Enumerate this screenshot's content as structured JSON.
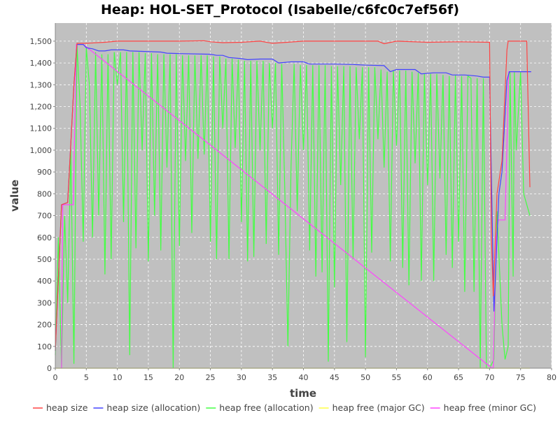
{
  "chart_data": {
    "type": "line",
    "title": "Heap: HOL-SET_Protocol (Isabelle/c6fc0c7ef56f)",
    "xlabel": "time",
    "ylabel": "value",
    "xlim": [
      0,
      80
    ],
    "ylim": [
      0,
      1583
    ],
    "x_ticks": [
      0,
      5,
      10,
      15,
      20,
      25,
      30,
      35,
      40,
      45,
      50,
      55,
      60,
      65,
      70,
      75,
      80
    ],
    "y_ticks": [
      0,
      100,
      200,
      300,
      400,
      500,
      600,
      700,
      800,
      900,
      1000,
      1100,
      1200,
      1300,
      1400,
      1500
    ],
    "y_tick_labels": [
      "0",
      "100",
      "200",
      "300",
      "400",
      "500",
      "600",
      "700",
      "800",
      "900",
      "1,000",
      "1,100",
      "1,200",
      "1,300",
      "1,400",
      "1,500"
    ],
    "grid": true,
    "legend_position": "bottom",
    "plot_background": "#c0c0c0",
    "series": [
      {
        "name": "heap size",
        "color": "#ff4444",
        "points": [
          [
            0,
            80
          ],
          [
            1,
            750
          ],
          [
            2,
            760
          ],
          [
            3,
            1300
          ],
          [
            3.5,
            1490
          ],
          [
            5,
            1490
          ],
          [
            8,
            1495
          ],
          [
            10,
            1500
          ],
          [
            20,
            1500
          ],
          [
            24,
            1502
          ],
          [
            25,
            1497
          ],
          [
            27,
            1493
          ],
          [
            30,
            1495
          ],
          [
            33,
            1500
          ],
          [
            35,
            1490
          ],
          [
            40,
            1500
          ],
          [
            50,
            1500
          ],
          [
            52,
            1500
          ],
          [
            53,
            1488
          ],
          [
            55,
            1500
          ],
          [
            60,
            1495
          ],
          [
            65,
            1497
          ],
          [
            70,
            1495
          ],
          [
            70.3,
            600
          ],
          [
            70.6,
            330
          ],
          [
            71.2,
            800
          ],
          [
            72,
            950
          ],
          [
            72.8,
            1460
          ],
          [
            73,
            1500
          ],
          [
            75,
            1500
          ],
          [
            76,
            1500
          ],
          [
            76.5,
            830
          ]
        ]
      },
      {
        "name": "heap size (allocation)",
        "color": "#4444ff",
        "points": [
          [
            0,
            80
          ],
          [
            1,
            750
          ],
          [
            2,
            760
          ],
          [
            3,
            1300
          ],
          [
            3.5,
            1485
          ],
          [
            4.5,
            1485
          ],
          [
            5,
            1470
          ],
          [
            6,
            1465
          ],
          [
            7,
            1455
          ],
          [
            8,
            1455
          ],
          [
            9,
            1460
          ],
          [
            11,
            1460
          ],
          [
            12,
            1455
          ],
          [
            17,
            1450
          ],
          [
            18,
            1445
          ],
          [
            20,
            1443
          ],
          [
            25,
            1440
          ],
          [
            26,
            1435
          ],
          [
            27,
            1435
          ],
          [
            28,
            1425
          ],
          [
            30,
            1420
          ],
          [
            31,
            1415
          ],
          [
            33,
            1418
          ],
          [
            35,
            1418
          ],
          [
            36,
            1400
          ],
          [
            38,
            1405
          ],
          [
            40,
            1405
          ],
          [
            41,
            1395
          ],
          [
            45,
            1395
          ],
          [
            48,
            1393
          ],
          [
            50,
            1390
          ],
          [
            53,
            1388
          ],
          [
            54,
            1360
          ],
          [
            55,
            1370
          ],
          [
            58,
            1370
          ],
          [
            59,
            1350
          ],
          [
            61,
            1355
          ],
          [
            63,
            1355
          ],
          [
            64,
            1345
          ],
          [
            66,
            1345
          ],
          [
            68,
            1340
          ],
          [
            69,
            1335
          ],
          [
            70,
            1335
          ],
          [
            70.7,
            260
          ],
          [
            71.5,
            800
          ],
          [
            72,
            900
          ],
          [
            72.8,
            1320
          ],
          [
            73.2,
            1360
          ],
          [
            75,
            1360
          ],
          [
            76.7,
            1360
          ]
        ]
      },
      {
        "name": "heap free (allocation)",
        "color": "#44ff44",
        "points": [
          [
            0,
            60
          ],
          [
            0.5,
            600
          ],
          [
            1,
            0
          ],
          [
            1.5,
            700
          ],
          [
            2,
            300
          ],
          [
            2.5,
            1000
          ],
          [
            3,
            20
          ],
          [
            3.5,
            1480
          ],
          [
            4,
            1200
          ],
          [
            4.5,
            580
          ],
          [
            5,
            1470
          ],
          [
            5.5,
            1300
          ],
          [
            6,
            600
          ],
          [
            6.5,
            1450
          ],
          [
            7,
            700
          ],
          [
            7.5,
            1440
          ],
          [
            8,
            430
          ],
          [
            8.5,
            1440
          ],
          [
            9,
            500
          ],
          [
            9.5,
            1450
          ],
          [
            10,
            1300
          ],
          [
            10.5,
            1450
          ],
          [
            11,
            670
          ],
          [
            11.5,
            1450
          ],
          [
            12,
            60
          ],
          [
            12.5,
            1450
          ],
          [
            13,
            550
          ],
          [
            13.5,
            1450
          ],
          [
            14,
            1000
          ],
          [
            14.5,
            1445
          ],
          [
            15,
            490
          ],
          [
            15.5,
            1445
          ],
          [
            16,
            700
          ],
          [
            16.5,
            1440
          ],
          [
            17,
            540
          ],
          [
            17.5,
            1440
          ],
          [
            18,
            920
          ],
          [
            18.5,
            1440
          ],
          [
            19,
            0
          ],
          [
            19.5,
            1440
          ],
          [
            20,
            560
          ],
          [
            20.5,
            1435
          ],
          [
            21,
            950
          ],
          [
            21.5,
            1435
          ],
          [
            22,
            620
          ],
          [
            22.5,
            1435
          ],
          [
            23,
            960
          ],
          [
            23.5,
            1435
          ],
          [
            24,
            980
          ],
          [
            24.5,
            1435
          ],
          [
            25,
            580
          ],
          [
            25.5,
            1430
          ],
          [
            26,
            500
          ],
          [
            26.5,
            1430
          ],
          [
            27,
            1100
          ],
          [
            27.5,
            1420
          ],
          [
            28,
            500
          ],
          [
            28.5,
            1420
          ],
          [
            29,
            1010
          ],
          [
            29.5,
            1415
          ],
          [
            30,
            670
          ],
          [
            30.5,
            1410
          ],
          [
            31,
            490
          ],
          [
            31.5,
            1410
          ],
          [
            32,
            510
          ],
          [
            32.5,
            1410
          ],
          [
            33,
            1000
          ],
          [
            33.5,
            1410
          ],
          [
            34,
            570
          ],
          [
            34.5,
            1400
          ],
          [
            35,
            1100
          ],
          [
            35.5,
            1400
          ],
          [
            36,
            520
          ],
          [
            36.5,
            1395
          ],
          [
            37,
            810
          ],
          [
            37.5,
            100
          ],
          [
            38,
            930
          ],
          [
            38.5,
            1395
          ],
          [
            39,
            720
          ],
          [
            39.5,
            1390
          ],
          [
            40,
            1000
          ],
          [
            40.5,
            1390
          ],
          [
            41,
            540
          ],
          [
            41.5,
            1390
          ],
          [
            42,
            420
          ],
          [
            42.5,
            1390
          ],
          [
            43,
            440
          ],
          [
            43.5,
            1390
          ],
          [
            44,
            30
          ],
          [
            44.5,
            1385
          ],
          [
            45,
            370
          ],
          [
            45.5,
            1385
          ],
          [
            46,
            840
          ],
          [
            46.5,
            1385
          ],
          [
            47,
            120
          ],
          [
            47.5,
            1385
          ],
          [
            48,
            500
          ],
          [
            48.5,
            1380
          ],
          [
            49,
            1050
          ],
          [
            49.5,
            1380
          ],
          [
            50,
            50
          ],
          [
            50.5,
            1380
          ],
          [
            51,
            530
          ],
          [
            51.5,
            1380
          ],
          [
            52,
            1050
          ],
          [
            52.5,
            1370
          ],
          [
            53,
            920
          ],
          [
            53.5,
            1360
          ],
          [
            54,
            490
          ],
          [
            54.5,
            1365
          ],
          [
            55,
            1020
          ],
          [
            55.5,
            1365
          ],
          [
            56,
            460
          ],
          [
            56.5,
            1365
          ],
          [
            57,
            380
          ],
          [
            57.5,
            1360
          ],
          [
            58,
            940
          ],
          [
            58.5,
            1355
          ],
          [
            59,
            400
          ],
          [
            59.5,
            1350
          ],
          [
            60,
            840
          ],
          [
            60.5,
            1350
          ],
          [
            61,
            400
          ],
          [
            61.5,
            1350
          ],
          [
            62,
            870
          ],
          [
            62.5,
            1345
          ],
          [
            63,
            520
          ],
          [
            63.5,
            1340
          ],
          [
            64,
            460
          ],
          [
            64.5,
            1345
          ],
          [
            65,
            580
          ],
          [
            65.5,
            1340
          ],
          [
            66,
            350
          ],
          [
            66.5,
            1340
          ],
          [
            67,
            1330
          ],
          [
            67.5,
            350
          ],
          [
            68,
            1330
          ],
          [
            68.5,
            0
          ],
          [
            69,
            1330
          ],
          [
            69.5,
            0
          ],
          [
            70,
            0
          ],
          [
            70.7,
            40
          ],
          [
            71.2,
            720
          ],
          [
            72,
            200
          ],
          [
            72.5,
            40
          ],
          [
            73,
            100
          ],
          [
            73.3,
            1360
          ],
          [
            73.8,
            420
          ],
          [
            74,
            1360
          ],
          [
            74.3,
            1000
          ],
          [
            75,
            1360
          ],
          [
            75.5,
            800
          ],
          [
            76.5,
            700
          ]
        ]
      },
      {
        "name": "heap free (major GC)",
        "color": "#ffff44",
        "points": [
          [
            0,
            0
          ],
          [
            76.5,
            0
          ]
        ]
      },
      {
        "name": "heap free (minor GC)",
        "color": "#ff44ff",
        "points": [
          [
            1,
            0
          ],
          [
            1.2,
            750
          ],
          [
            2.9,
            750
          ],
          [
            3.4,
            1485
          ],
          [
            4.5,
            1485
          ],
          [
            70.4,
            0
          ],
          [
            70.6,
            0
          ],
          [
            71.1,
            600
          ],
          [
            71.4,
            680
          ],
          [
            72.5,
            680
          ],
          [
            73.1,
            1360
          ],
          [
            76.7,
            1360
          ]
        ]
      }
    ]
  }
}
